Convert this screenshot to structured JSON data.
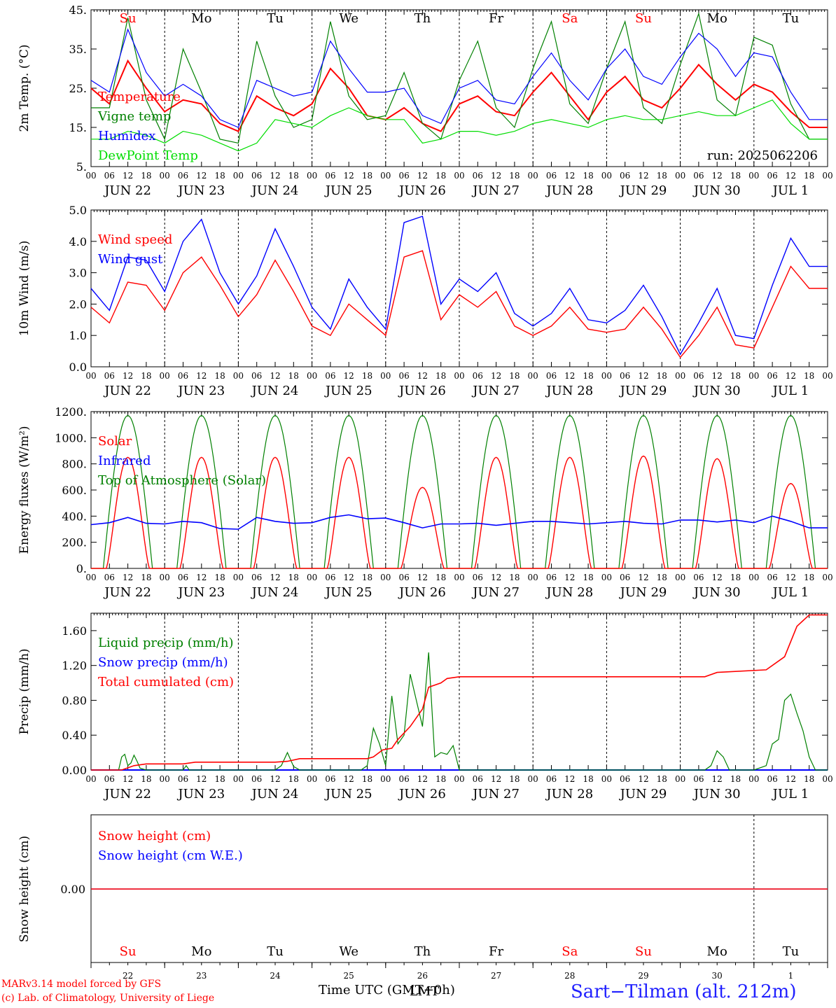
{
  "chart_data": [
    {
      "type": "line",
      "panel": "temperature",
      "ylabel": "2m Temp. (°C)",
      "ylim": [
        5,
        45
      ],
      "yticks": [
        "5.",
        "15.",
        "25.",
        "35.",
        "45."
      ],
      "annotation": "run: 2025062206",
      "x_hours": [
        0,
        6,
        12,
        18,
        24,
        30,
        36,
        42,
        48,
        54,
        60,
        66,
        72,
        78,
        84,
        90,
        96,
        102,
        108,
        114,
        120,
        126,
        132,
        138,
        144,
        150,
        156,
        162,
        168,
        174,
        180,
        186,
        192,
        198,
        204,
        210,
        216,
        222,
        228,
        234
      ],
      "series": [
        {
          "name": "Temperature",
          "color": "#ff0000",
          "values": [
            25,
            21,
            32,
            25,
            19,
            22,
            21,
            16,
            14,
            23,
            20,
            18,
            21,
            30,
            25,
            18,
            17,
            20,
            16,
            14,
            21,
            23,
            19,
            18,
            24,
            29,
            23,
            17,
            24,
            28,
            22,
            20,
            25,
            31,
            26,
            22,
            26,
            24,
            19,
            15
          ]
        },
        {
          "name": "Vigne temp",
          "color": "#008000",
          "values": [
            20,
            20,
            43,
            22,
            12,
            35,
            24,
            12,
            11,
            37,
            23,
            15,
            17,
            42,
            23,
            17,
            18,
            29,
            16,
            12,
            27,
            37,
            20,
            15,
            30,
            42,
            21,
            16,
            30,
            42,
            20,
            16,
            31,
            44,
            22,
            18,
            38,
            36,
            21,
            12
          ]
        },
        {
          "name": "Humidex",
          "color": "#0000ff",
          "values": [
            27,
            24,
            40,
            29,
            23,
            26,
            23,
            17,
            15,
            27,
            25,
            23,
            24,
            37,
            30,
            24,
            24,
            25,
            18,
            16,
            25,
            27,
            22,
            21,
            28,
            34,
            27,
            22,
            30,
            35,
            28,
            26,
            33,
            39,
            35,
            28,
            34,
            33,
            24,
            17
          ]
        },
        {
          "name": "DewPoint Temp",
          "color": "#00dd00",
          "values": [
            12,
            12,
            14,
            13,
            11,
            14,
            13,
            11,
            9,
            11,
            17,
            16,
            15,
            18,
            20,
            18,
            17,
            17,
            11,
            12,
            14,
            14,
            13,
            14,
            16,
            17,
            16,
            15,
            17,
            18,
            17,
            17,
            18,
            19,
            18,
            18,
            20,
            22,
            16,
            12
          ]
        }
      ]
    },
    {
      "type": "line",
      "panel": "wind",
      "ylabel": "10m Wind (m/s)",
      "ylim": [
        0,
        5
      ],
      "yticks": [
        "0.0",
        "1.0",
        "2.0",
        "3.0",
        "4.0",
        "5.0"
      ],
      "x_hours": [
        0,
        6,
        12,
        18,
        24,
        30,
        36,
        42,
        48,
        54,
        60,
        66,
        72,
        78,
        84,
        90,
        96,
        102,
        108,
        114,
        120,
        126,
        132,
        138,
        144,
        150,
        156,
        162,
        168,
        174,
        180,
        186,
        192,
        198,
        204,
        210,
        216,
        222,
        228,
        234
      ],
      "series": [
        {
          "name": "Wind speed",
          "color": "#ff0000",
          "values": [
            1.9,
            1.4,
            2.7,
            2.6,
            1.8,
            3.0,
            3.5,
            2.6,
            1.6,
            2.3,
            3.4,
            2.4,
            1.3,
            1.0,
            2.0,
            1.5,
            1.0,
            3.5,
            3.7,
            1.5,
            2.3,
            1.9,
            2.4,
            1.3,
            1.0,
            1.3,
            1.9,
            1.2,
            1.1,
            1.2,
            1.9,
            1.2,
            0.3,
            1.0,
            1.9,
            0.7,
            0.6,
            1.9,
            3.2,
            2.5
          ]
        },
        {
          "name": "Wind gust",
          "color": "#0000ff",
          "values": [
            2.5,
            1.8,
            3.5,
            3.4,
            2.4,
            4.0,
            4.7,
            3.0,
            2.0,
            2.9,
            4.4,
            3.2,
            1.9,
            1.2,
            2.8,
            1.9,
            1.2,
            4.6,
            4.8,
            2.0,
            2.8,
            2.4,
            3.0,
            1.7,
            1.3,
            1.7,
            2.5,
            1.5,
            1.4,
            1.8,
            2.6,
            1.6,
            0.4,
            1.4,
            2.5,
            1.0,
            0.9,
            2.6,
            4.1,
            3.2
          ]
        }
      ]
    },
    {
      "type": "line",
      "panel": "energy",
      "ylabel": "Energy fluxes (W/m²)",
      "ylim": [
        0,
        1200
      ],
      "yticks": [
        "0.",
        "200.",
        "400.",
        "600.",
        "800.",
        "1000.",
        "1200."
      ],
      "solar_peaks": [
        850,
        850,
        850,
        850,
        620,
        850,
        850,
        860,
        840,
        650
      ],
      "series": [
        {
          "name": "Solar",
          "color": "#ff0000"
        },
        {
          "name": "Infrared",
          "color": "#0000ff",
          "values": [
            335,
            350,
            390,
            345,
            340,
            360,
            350,
            305,
            300,
            390,
            360,
            345,
            350,
            390,
            410,
            380,
            385,
            350,
            310,
            340,
            340,
            345,
            330,
            345,
            360,
            360,
            350,
            340,
            350,
            360,
            345,
            340,
            370,
            370,
            355,
            370,
            350,
            400,
            360,
            310
          ]
        },
        {
          "name": "Top of Atmosphere (Solar)",
          "color": "#008000",
          "peak": 1170
        }
      ]
    },
    {
      "type": "line",
      "panel": "precip",
      "ylabel": "Precip (mm/h)",
      "ylim": [
        0,
        1.8
      ],
      "yticks": [
        "0.00",
        "0.40",
        "0.80",
        "1.20",
        "1.60"
      ],
      "series": [
        {
          "name": "Liquid precip (mm/h)",
          "color": "#008000"
        },
        {
          "name": "Snow precip (mm/h)",
          "color": "#0000ff"
        },
        {
          "name": "Total cumulated (cm)",
          "color": "#ff0000",
          "points": [
            [
              0,
              0
            ],
            [
              10,
              0
            ],
            [
              14,
              0.05
            ],
            [
              18,
              0.07
            ],
            [
              30,
              0.07
            ],
            [
              34,
              0.09
            ],
            [
              60,
              0.09
            ],
            [
              64,
              0.1
            ],
            [
              68,
              0.13
            ],
            [
              90,
              0.13
            ],
            [
              92,
              0.15
            ],
            [
              95,
              0.23
            ],
            [
              98,
              0.25
            ],
            [
              100,
              0.35
            ],
            [
              104,
              0.5
            ],
            [
              108,
              0.7
            ],
            [
              110,
              0.95
            ],
            [
              114,
              1.0
            ],
            [
              116,
              1.05
            ],
            [
              120,
              1.07
            ],
            [
              200,
              1.07
            ],
            [
              204,
              1.12
            ],
            [
              220,
              1.15
            ],
            [
              226,
              1.3
            ],
            [
              230,
              1.65
            ],
            [
              234,
              1.78
            ],
            [
              240,
              1.78
            ]
          ]
        }
      ],
      "liquid_points": [
        [
          0,
          0
        ],
        [
          9,
          0
        ],
        [
          10,
          0.15
        ],
        [
          11,
          0.18
        ],
        [
          12,
          0.05
        ],
        [
          13,
          0.08
        ],
        [
          14,
          0.17
        ],
        [
          15,
          0.1
        ],
        [
          16,
          0.02
        ],
        [
          18,
          0
        ],
        [
          30,
          0
        ],
        [
          31,
          0.05
        ],
        [
          32,
          0
        ],
        [
          60,
          0
        ],
        [
          62,
          0.05
        ],
        [
          64,
          0.2
        ],
        [
          66,
          0.04
        ],
        [
          68,
          0
        ],
        [
          88,
          0
        ],
        [
          90,
          0.05
        ],
        [
          92,
          0.48
        ],
        [
          94,
          0.3
        ],
        [
          96,
          0.05
        ],
        [
          98,
          0.85
        ],
        [
          100,
          0.3
        ],
        [
          102,
          0.4
        ],
        [
          104,
          1.1
        ],
        [
          106,
          0.8
        ],
        [
          108,
          0.5
        ],
        [
          110,
          1.35
        ],
        [
          112,
          0.15
        ],
        [
          114,
          0.2
        ],
        [
          116,
          0.18
        ],
        [
          118,
          0.28
        ],
        [
          120,
          0
        ],
        [
          200,
          0
        ],
        [
          202,
          0.05
        ],
        [
          204,
          0.22
        ],
        [
          206,
          0.15
        ],
        [
          208,
          0
        ],
        [
          216,
          0
        ],
        [
          220,
          0.05
        ],
        [
          222,
          0.3
        ],
        [
          224,
          0.35
        ],
        [
          226,
          0.8
        ],
        [
          228,
          0.87
        ],
        [
          230,
          0.65
        ],
        [
          232,
          0.45
        ],
        [
          234,
          0.15
        ],
        [
          236,
          0
        ],
        [
          240,
          0
        ]
      ]
    },
    {
      "type": "line",
      "panel": "snow",
      "ylabel": "Snow height (cm)",
      "yticks": [
        "0.00"
      ],
      "series": [
        {
          "name": "Snow height (cm)",
          "color": "#ff0000",
          "values": [
            0.0
          ]
        },
        {
          "name": "Snow height (cm W.E.)",
          "color": "#0000ff",
          "values": [
            0.0
          ]
        }
      ]
    }
  ],
  "x_axis": {
    "hour_labels": [
      "00",
      "06",
      "12",
      "18"
    ],
    "date_labels": [
      "JUN 22",
      "JUN 23",
      "JUN 24",
      "JUN 25",
      "JUN 26",
      "JUN 27",
      "JUN 28",
      "JUN 29",
      "JUN 30",
      "JUL  1"
    ],
    "day_numbers": [
      "22",
      "23",
      "24",
      "25",
      "26",
      "27",
      "28",
      "29",
      "30",
      "1"
    ],
    "weekdays": [
      "Su",
      "Mo",
      "Tu",
      "We",
      "Th",
      "Fr",
      "Sa",
      "Su",
      "Mo",
      "Tu"
    ],
    "weekday_colors": [
      "#ff0000",
      "#000000",
      "#000000",
      "#000000",
      "#000000",
      "#000000",
      "#ff0000",
      "#ff0000",
      "#000000",
      "#000000"
    ],
    "xlabel": "Time UTC (GMT+0h)",
    "xlabel_overlap": "LMT"
  },
  "footer": {
    "credit_line1": "MARv3.14 model forced by GFS",
    "credit_line2": "(c) Lab. of Climatology, University of Liege",
    "location": "Sart−Tilman (alt. 212m)"
  }
}
